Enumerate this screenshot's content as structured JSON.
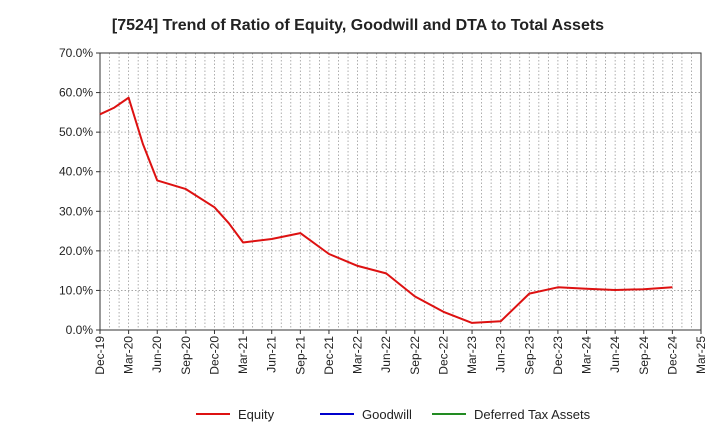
{
  "chart_data": {
    "type": "line",
    "title": "[7524]  Trend of Ratio of Equity, Goodwill and DTA to Total Assets",
    "xlabel": "",
    "ylabel": "",
    "ylim": [
      0,
      70
    ],
    "y_ticks": [
      0,
      10,
      20,
      30,
      40,
      50,
      60,
      70
    ],
    "y_tick_labels": [
      "0.0%",
      "10.0%",
      "20.0%",
      "30.0%",
      "40.0%",
      "50.0%",
      "60.0%",
      "70.0%"
    ],
    "x_tick_labels": [
      "Dec-19",
      "Mar-20",
      "Jun-20",
      "Sep-20",
      "Dec-20",
      "Mar-21",
      "Jun-21",
      "Sep-21",
      "Dec-21",
      "Mar-22",
      "Jun-22",
      "Sep-22",
      "Dec-22",
      "Mar-23",
      "Jun-23",
      "Sep-23",
      "Dec-23",
      "Mar-24",
      "Jun-24",
      "Sep-24",
      "Dec-24",
      "Mar-25"
    ],
    "grid": true,
    "legend_position": "bottom",
    "series": [
      {
        "name": "Equity",
        "color": "#dd1111",
        "x_index": [
          0,
          0.5,
          1,
          1.5,
          2,
          3,
          4,
          4.5,
          5,
          6,
          7,
          8,
          9,
          10,
          11,
          12,
          13,
          14,
          15,
          16,
          17,
          18,
          19,
          20
        ],
        "values": [
          54.5,
          56.2,
          58.7,
          47.0,
          37.8,
          35.6,
          31.0,
          27.0,
          22.1,
          23.0,
          24.5,
          19.2,
          16.2,
          14.3,
          8.5,
          4.6,
          1.8,
          2.2,
          9.2,
          10.8,
          10.4,
          10.1,
          10.3,
          10.8
        ]
      },
      {
        "name": "Goodwill",
        "color": "#0000cc",
        "x_index": [],
        "values": []
      },
      {
        "name": "Deferred Tax Assets",
        "color": "#228b22",
        "x_index": [],
        "values": []
      }
    ]
  }
}
